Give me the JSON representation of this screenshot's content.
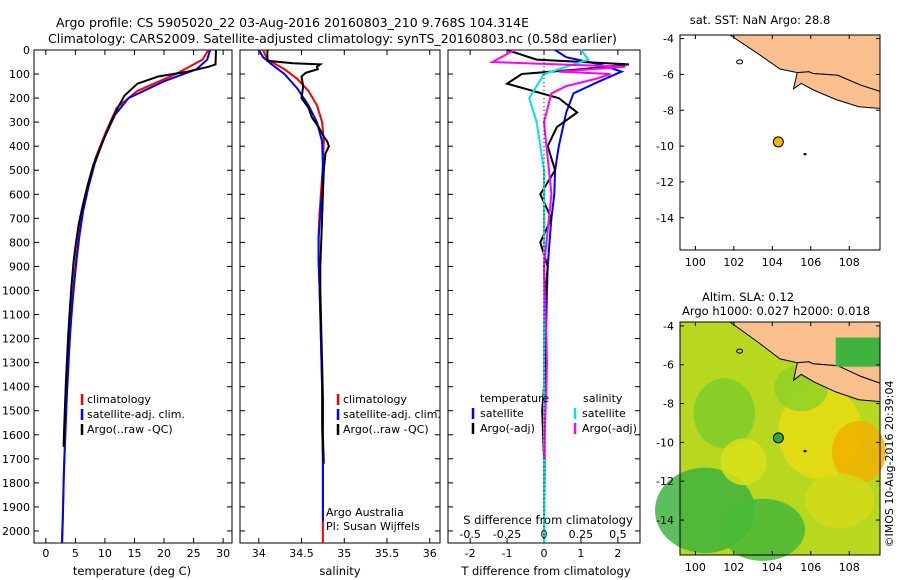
{
  "header": {
    "line1": "Argo profile: CS 5905020_22 03-Aug-2016 20160803_210 9.768S 104.314E",
    "line2": "Climatology: CARS2009. Satellite-adjusted climatology: synTS_20160803.nc (0.58d earlier)"
  },
  "colors": {
    "climatology": "#ff0000",
    "satellite": "#0000ff",
    "argo": "#000000",
    "sal_satellite": "#00e5e5",
    "sal_argo": "#ff00ff",
    "land": "#f9c08e",
    "marker": "#f5b800",
    "marker2": "#33a833"
  },
  "chart_data": [
    {
      "type": "line",
      "xlabel": "temperature (deg C)",
      "ylabel": "",
      "xlim": [
        -2,
        31.5
      ],
      "ylim": [
        2050,
        0
      ],
      "xticks": [
        0,
        5,
        10,
        15,
        20,
        25,
        30
      ],
      "yticks": [
        0,
        100,
        200,
        300,
        400,
        500,
        600,
        700,
        800,
        900,
        1000,
        1100,
        1200,
        1300,
        1400,
        1500,
        1600,
        1700,
        1800,
        1900,
        2000
      ],
      "legend": [
        "climatology",
        "satellite-adj. clim.",
        "Argo(..raw -QC)"
      ],
      "series": [
        {
          "name": "climatology",
          "color": "#ff0000",
          "x": [
            27.5,
            26.5,
            22,
            15.5,
            12,
            10,
            8.4,
            7.3,
            6.3,
            5.7,
            5.2,
            4.8,
            4.45,
            4.15,
            3.9,
            3.7,
            3.5,
            3.35,
            3.2,
            3.05,
            2.95,
            2.85,
            2.7
          ],
          "y": [
            0,
            40,
            100,
            170,
            240,
            350,
            450,
            550,
            650,
            750,
            850,
            950,
            1050,
            1150,
            1250,
            1350,
            1450,
            1550,
            1650,
            1750,
            1850,
            1950,
            2050
          ]
        },
        {
          "name": "satellite-adj. clim.",
          "color": "#0000ff",
          "x": [
            27.8,
            27.3,
            25.5,
            20,
            14,
            11.7,
            9.8,
            8.3,
            7.2,
            6.3,
            5.7,
            5.2,
            4.8,
            4.45,
            4.15,
            3.9,
            3.7,
            3.5,
            3.35,
            3.2,
            3.05,
            2.95,
            2.85,
            2.75
          ],
          "y": [
            0,
            40,
            80,
            130,
            200,
            270,
            370,
            470,
            570,
            670,
            770,
            870,
            970,
            1070,
            1170,
            1270,
            1370,
            1470,
            1570,
            1670,
            1770,
            1870,
            1970,
            2050
          ]
        },
        {
          "name": "Argo(..raw -QC)",
          "color": "#000000",
          "x": [
            28.8,
            28.7,
            27.5,
            24,
            19,
            15.5,
            13.3,
            12.2,
            11,
            10,
            9,
            8,
            7.1,
            6.3,
            5.6,
            5.1,
            4.7,
            4.35,
            4.05,
            3.8,
            3.6,
            3.4,
            3.25,
            3.1,
            3
          ],
          "y": [
            0,
            60,
            70,
            90,
            110,
            140,
            190,
            240,
            300,
            360,
            420,
            480,
            560,
            640,
            720,
            800,
            880,
            980,
            1080,
            1180,
            1280,
            1380,
            1480,
            1580,
            1650
          ]
        }
      ]
    },
    {
      "type": "line",
      "xlabel": "salinity",
      "ylabel": "",
      "xlim": [
        33.78,
        36.12
      ],
      "ylim": [
        2050,
        0
      ],
      "xticks": [
        34,
        34.5,
        35,
        35.5,
        36
      ],
      "legend": [
        "climatology",
        "satellite-adj. clim.",
        "Argo(..raw -QC)"
      ],
      "annotations": [
        "Argo Australia",
        "PI: Susan Wijffels"
      ],
      "series": [
        {
          "name": "climatology",
          "color": "#ff0000",
          "x": [
            34.05,
            34.1,
            34.3,
            34.45,
            34.58,
            34.68,
            34.74,
            34.76,
            34.75,
            34.73,
            34.71,
            34.7,
            34.7,
            34.71,
            34.72,
            34.73,
            34.74,
            34.74,
            34.75,
            34.75,
            34.75,
            34.75
          ],
          "y": [
            0,
            40,
            80,
            120,
            170,
            230,
            300,
            380,
            480,
            580,
            680,
            780,
            880,
            980,
            1100,
            1250,
            1400,
            1550,
            1700,
            1850,
            1950,
            2050
          ]
        },
        {
          "name": "satellite-adj. clim.",
          "color": "#0000ff",
          "x": [
            34.0,
            34.05,
            34.15,
            34.3,
            34.45,
            34.58,
            34.68,
            34.74,
            34.75,
            34.74,
            34.72,
            34.7,
            34.7,
            34.71,
            34.72,
            34.73,
            34.74,
            34.74,
            34.75,
            34.75,
            34.75
          ],
          "y": [
            0,
            30,
            60,
            100,
            160,
            230,
            300,
            380,
            480,
            580,
            680,
            780,
            880,
            980,
            1100,
            1250,
            1400,
            1550,
            1700,
            1850,
            1960
          ]
        },
        {
          "name": "Argo(..raw -QC)",
          "color": "#000000",
          "x": [
            34.1,
            34.1,
            34.4,
            34.72,
            34.68,
            34.69,
            34.55,
            34.5,
            34.52,
            34.5,
            34.58,
            34.62,
            34.7,
            34.76,
            34.8,
            34.82,
            34.78,
            34.76,
            34.75,
            34.74,
            34.73,
            34.72,
            34.72,
            34.73,
            34.74,
            34.75,
            34.75,
            34.76
          ],
          "y": [
            0,
            45,
            55,
            60,
            70,
            80,
            95,
            110,
            150,
            200,
            240,
            280,
            320,
            360,
            380,
            400,
            430,
            500,
            600,
            700,
            800,
            900,
            1000,
            1150,
            1300,
            1450,
            1600,
            1720
          ]
        }
      ]
    },
    {
      "type": "line",
      "xlabel": "T difference from climatology",
      "x2label": "S difference from climatology",
      "ylabel": "",
      "xlim": [
        -2.6,
        2.6
      ],
      "x2lim": [
        -0.65,
        0.65
      ],
      "ylim": [
        2050,
        0
      ],
      "xticks": [
        -2,
        -1,
        0,
        1,
        2
      ],
      "x2ticks": [
        "-0.5",
        "-0.25",
        "0",
        "0.25",
        "0.5"
      ],
      "legend": {
        "temperature": [
          "satellite",
          "Argo(-adj)"
        ],
        "salinity": [
          "satellite",
          "Argo(-adj)"
        ]
      },
      "series": [
        {
          "name": "temperature satellite",
          "color": "#0000ff",
          "x": [
            0.3,
            0.6,
            1.5,
            2.1,
            1.5,
            0.8,
            0.6,
            0.5,
            0.4,
            0.35,
            0.3,
            0.28,
            0.2,
            0.15,
            0.1,
            0.08,
            0.05,
            0.03,
            0.02,
            0.01,
            0.0,
            0.0
          ],
          "y": [
            0,
            30,
            60,
            90,
            130,
            180,
            260,
            330,
            400,
            450,
            500,
            600,
            700,
            800,
            900,
            1000,
            1200,
            1400,
            1600,
            1800,
            1950,
            2050
          ]
        },
        {
          "name": "temperature Argo(-adj)",
          "color": "#000000",
          "x": [
            -1.0,
            -0.2,
            2.3,
            1.0,
            -0.6,
            -1.0,
            0.4,
            0.9,
            0.35,
            0.1,
            0.3,
            -0.1,
            0.2,
            -0.1,
            0.1,
            0.0,
            0.05,
            -0.05,
            0.0,
            0.0
          ],
          "y": [
            0,
            40,
            60,
            80,
            100,
            140,
            200,
            260,
            320,
            400,
            500,
            600,
            700,
            800,
            900,
            1100,
            1300,
            1500,
            1700,
            1900
          ]
        },
        {
          "name": "salinity satellite",
          "color": "#00e5e5",
          "x": [
            0.25,
            0.3,
            0.0,
            -0.1,
            -0.05,
            0.0,
            0.0,
            0.0,
            0.0,
            0.0
          ],
          "y": [
            0,
            40,
            100,
            200,
            300,
            500,
            800,
            1200,
            1600,
            2050
          ]
        },
        {
          "name": "salinity Argo(-adj)",
          "color": "#ff00ff",
          "x": [
            -0.2,
            -0.35,
            0.55,
            0.1,
            0.45,
            0.35,
            0.15,
            0.05,
            0.0,
            0.05,
            0.0,
            0.02,
            0.0
          ],
          "y": [
            0,
            50,
            70,
            90,
            100,
            120,
            150,
            180,
            300,
            600,
            900,
            1300,
            1700
          ]
        }
      ]
    },
    {
      "type": "map",
      "title": "sat. SST: NaN Argo: 28.8",
      "xticks": [
        100,
        102,
        104,
        106,
        108
      ],
      "yticks": [
        -4,
        -6,
        -8,
        -10,
        -12,
        -14
      ],
      "xlim": [
        99.2,
        109.6
      ],
      "ylim": [
        -15.8,
        -3.8
      ],
      "marker": [
        104.314,
        -9.768
      ]
    },
    {
      "type": "heatmap",
      "title1": "Altim. SLA: 0.12",
      "title2": "Argo h1000: 0.027 h2000: 0.018",
      "xticks": [
        100,
        102,
        104,
        106,
        108
      ],
      "yticks": [
        -4,
        -6,
        -8,
        -10,
        -12,
        -14
      ],
      "xlim": [
        99.2,
        109.6
      ],
      "ylim": [
        -15.8,
        -3.8
      ],
      "marker": [
        104.314,
        -9.768
      ]
    }
  ],
  "watermark": "©IMOS 10-Aug-2016 20:39:04"
}
